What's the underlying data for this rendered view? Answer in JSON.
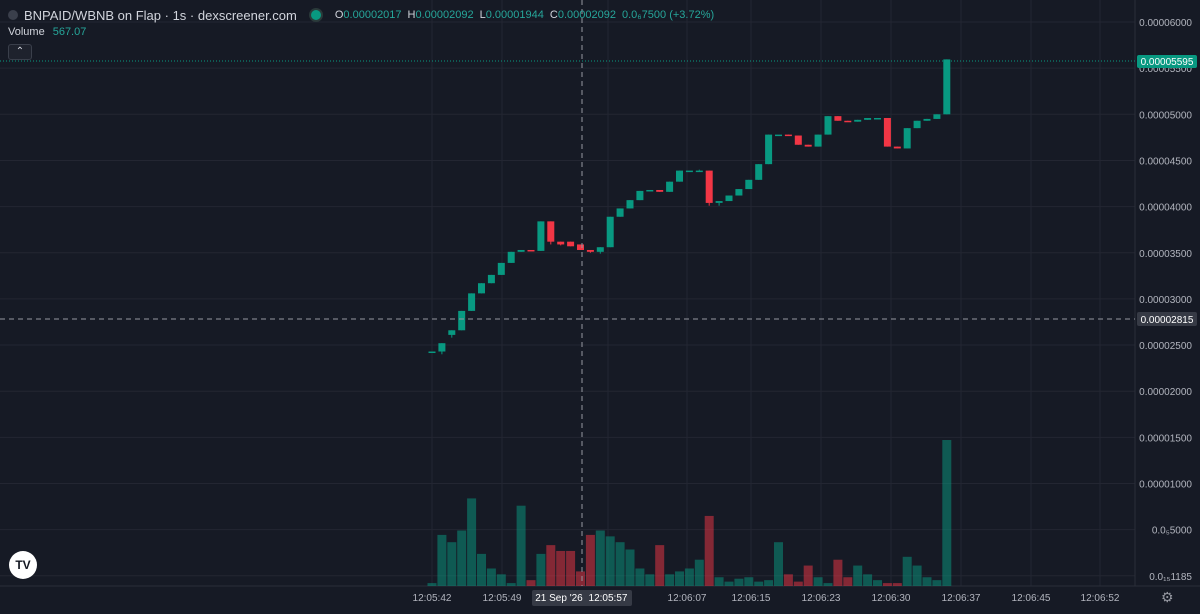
{
  "header": {
    "title": "BNPAID/WBNB on Flap · 1s · dexscreener.com",
    "o_label": "O",
    "o_value": "0.00002017",
    "h_label": "H",
    "h_value": "0.00002092",
    "l_label": "L",
    "l_value": "0.00001944",
    "c_label": "C",
    "c_value": "0.00002092",
    "change": "0.0₆7500 (+3.72%)"
  },
  "volume": {
    "label": "Volume",
    "value": "567.07"
  },
  "logo_text": "TV",
  "icons": {
    "symbol": "symbol-dot-icon",
    "status": "status-dot-icon",
    "collapse": "chevron-up-icon",
    "settings": "gear-icon"
  },
  "colors": {
    "up": "#089981",
    "down": "#f23645",
    "background": "#161a25"
  },
  "chart_data": {
    "type": "candlestick",
    "y_ticks": [
      "0.00006000",
      "0.00005500",
      "0.00005000",
      "0.00004500",
      "0.00004000",
      "0.00003500",
      "0.00003000",
      "0.00002500",
      "0.00002000",
      "0.00001500",
      "0.00001000",
      "0.0₅5000",
      "0.0₁₅1185"
    ],
    "last_price_label": "0.00005595",
    "crosshair_price_label": "0.00002815",
    "crosshair_time_label": "21 Sep '26",
    "x_ticks": [
      "12:05:42",
      "12:05:49",
      "12:05:57",
      "12:06:07",
      "12:06:15",
      "12:06:23",
      "12:06:30",
      "12:06:37",
      "12:06:45",
      "12:06:52"
    ],
    "candles": [
      {
        "o": 2.43,
        "h": 2.43,
        "l": 2.43,
        "c": 2.43
      },
      {
        "o": 2.43,
        "h": 2.52,
        "l": 2.4,
        "c": 2.52
      },
      {
        "o": 2.61,
        "h": 2.66,
        "l": 2.58,
        "c": 2.66
      },
      {
        "o": 2.66,
        "h": 2.87,
        "l": 2.66,
        "c": 2.87
      },
      {
        "o": 2.87,
        "h": 3.06,
        "l": 2.87,
        "c": 3.06
      },
      {
        "o": 3.06,
        "h": 3.17,
        "l": 3.06,
        "c": 3.17
      },
      {
        "o": 3.17,
        "h": 3.26,
        "l": 3.17,
        "c": 3.26
      },
      {
        "o": 3.26,
        "h": 3.39,
        "l": 3.26,
        "c": 3.39
      },
      {
        "o": 3.39,
        "h": 3.51,
        "l": 3.39,
        "c": 3.51
      },
      {
        "o": 3.51,
        "h": 3.53,
        "l": 3.51,
        "c": 3.53
      },
      {
        "o": 3.53,
        "h": 3.53,
        "l": 3.52,
        "c": 3.52
      },
      {
        "o": 3.52,
        "h": 3.84,
        "l": 3.52,
        "c": 3.84
      },
      {
        "o": 3.84,
        "h": 3.84,
        "l": 3.59,
        "c": 3.62
      },
      {
        "o": 3.62,
        "h": 3.62,
        "l": 3.58,
        "c": 3.59
      },
      {
        "o": 3.62,
        "h": 3.62,
        "l": 3.57,
        "c": 3.57
      },
      {
        "o": 3.59,
        "h": 3.59,
        "l": 3.53,
        "c": 3.53
      },
      {
        "o": 3.53,
        "h": 3.53,
        "l": 3.5,
        "c": 3.51
      },
      {
        "o": 3.51,
        "h": 3.56,
        "l": 3.49,
        "c": 3.56
      },
      {
        "o": 3.56,
        "h": 3.89,
        "l": 3.56,
        "c": 3.89
      },
      {
        "o": 3.89,
        "h": 3.98,
        "l": 3.89,
        "c": 3.98
      },
      {
        "o": 3.98,
        "h": 4.07,
        "l": 3.98,
        "c": 4.07
      },
      {
        "o": 4.07,
        "h": 4.17,
        "l": 4.07,
        "c": 4.17
      },
      {
        "o": 4.17,
        "h": 4.18,
        "l": 4.17,
        "c": 4.18
      },
      {
        "o": 4.18,
        "h": 4.18,
        "l": 4.16,
        "c": 4.16
      },
      {
        "o": 4.16,
        "h": 4.27,
        "l": 4.16,
        "c": 4.27
      },
      {
        "o": 4.27,
        "h": 4.39,
        "l": 4.27,
        "c": 4.39
      },
      {
        "o": 4.39,
        "h": 4.39,
        "l": 4.39,
        "c": 4.39
      },
      {
        "o": 4.39,
        "h": 4.4,
        "l": 4.39,
        "c": 4.39
      },
      {
        "o": 4.39,
        "h": 4.39,
        "l": 4.01,
        "c": 4.04
      },
      {
        "o": 4.04,
        "h": 4.04,
        "l": 4.01,
        "c": 4.06
      },
      {
        "o": 4.06,
        "h": 4.12,
        "l": 4.06,
        "c": 4.12
      },
      {
        "o": 4.12,
        "h": 4.19,
        "l": 4.12,
        "c": 4.19
      },
      {
        "o": 4.19,
        "h": 4.29,
        "l": 4.19,
        "c": 4.29
      },
      {
        "o": 4.29,
        "h": 4.46,
        "l": 4.29,
        "c": 4.46
      },
      {
        "o": 4.46,
        "h": 4.78,
        "l": 4.46,
        "c": 4.78
      },
      {
        "o": 4.78,
        "h": 4.78,
        "l": 4.78,
        "c": 4.78
      },
      {
        "o": 4.78,
        "h": 4.78,
        "l": 4.77,
        "c": 4.77
      },
      {
        "o": 4.77,
        "h": 4.77,
        "l": 4.67,
        "c": 4.67
      },
      {
        "o": 4.67,
        "h": 4.67,
        "l": 4.65,
        "c": 4.65
      },
      {
        "o": 4.65,
        "h": 4.78,
        "l": 4.65,
        "c": 4.78
      },
      {
        "o": 4.78,
        "h": 4.98,
        "l": 4.78,
        "c": 4.98
      },
      {
        "o": 4.98,
        "h": 4.98,
        "l": 4.93,
        "c": 4.93
      },
      {
        "o": 4.93,
        "h": 4.93,
        "l": 4.92,
        "c": 4.92
      },
      {
        "o": 4.92,
        "h": 4.94,
        "l": 4.92,
        "c": 4.94
      },
      {
        "o": 4.94,
        "h": 4.96,
        "l": 4.94,
        "c": 4.96
      },
      {
        "o": 4.96,
        "h": 4.96,
        "l": 4.96,
        "c": 4.96
      },
      {
        "o": 4.96,
        "h": 4.96,
        "l": 4.65,
        "c": 4.65
      },
      {
        "o": 4.65,
        "h": 4.65,
        "l": 4.63,
        "c": 4.63
      },
      {
        "o": 4.63,
        "h": 4.85,
        "l": 4.63,
        "c": 4.85
      },
      {
        "o": 4.85,
        "h": 4.93,
        "l": 4.85,
        "c": 4.93
      },
      {
        "o": 4.93,
        "h": 4.95,
        "l": 4.93,
        "c": 4.95
      },
      {
        "o": 4.95,
        "h": 5.0,
        "l": 4.95,
        "c": 5.0
      },
      {
        "o": 5.0,
        "h": 5.595,
        "l": 5.0,
        "c": 5.595
      }
    ],
    "volumes": [
      2,
      35,
      30,
      38,
      60,
      22,
      12,
      8,
      2,
      55,
      4,
      22,
      28,
      24,
      24,
      10,
      35,
      38,
      34,
      30,
      25,
      12,
      8,
      28,
      8,
      10,
      12,
      18,
      48,
      6,
      3,
      5,
      6,
      3,
      4,
      30,
      8,
      3,
      14,
      6,
      2,
      18,
      6,
      14,
      8,
      4,
      2,
      2,
      20,
      14,
      6,
      4,
      100
    ]
  }
}
